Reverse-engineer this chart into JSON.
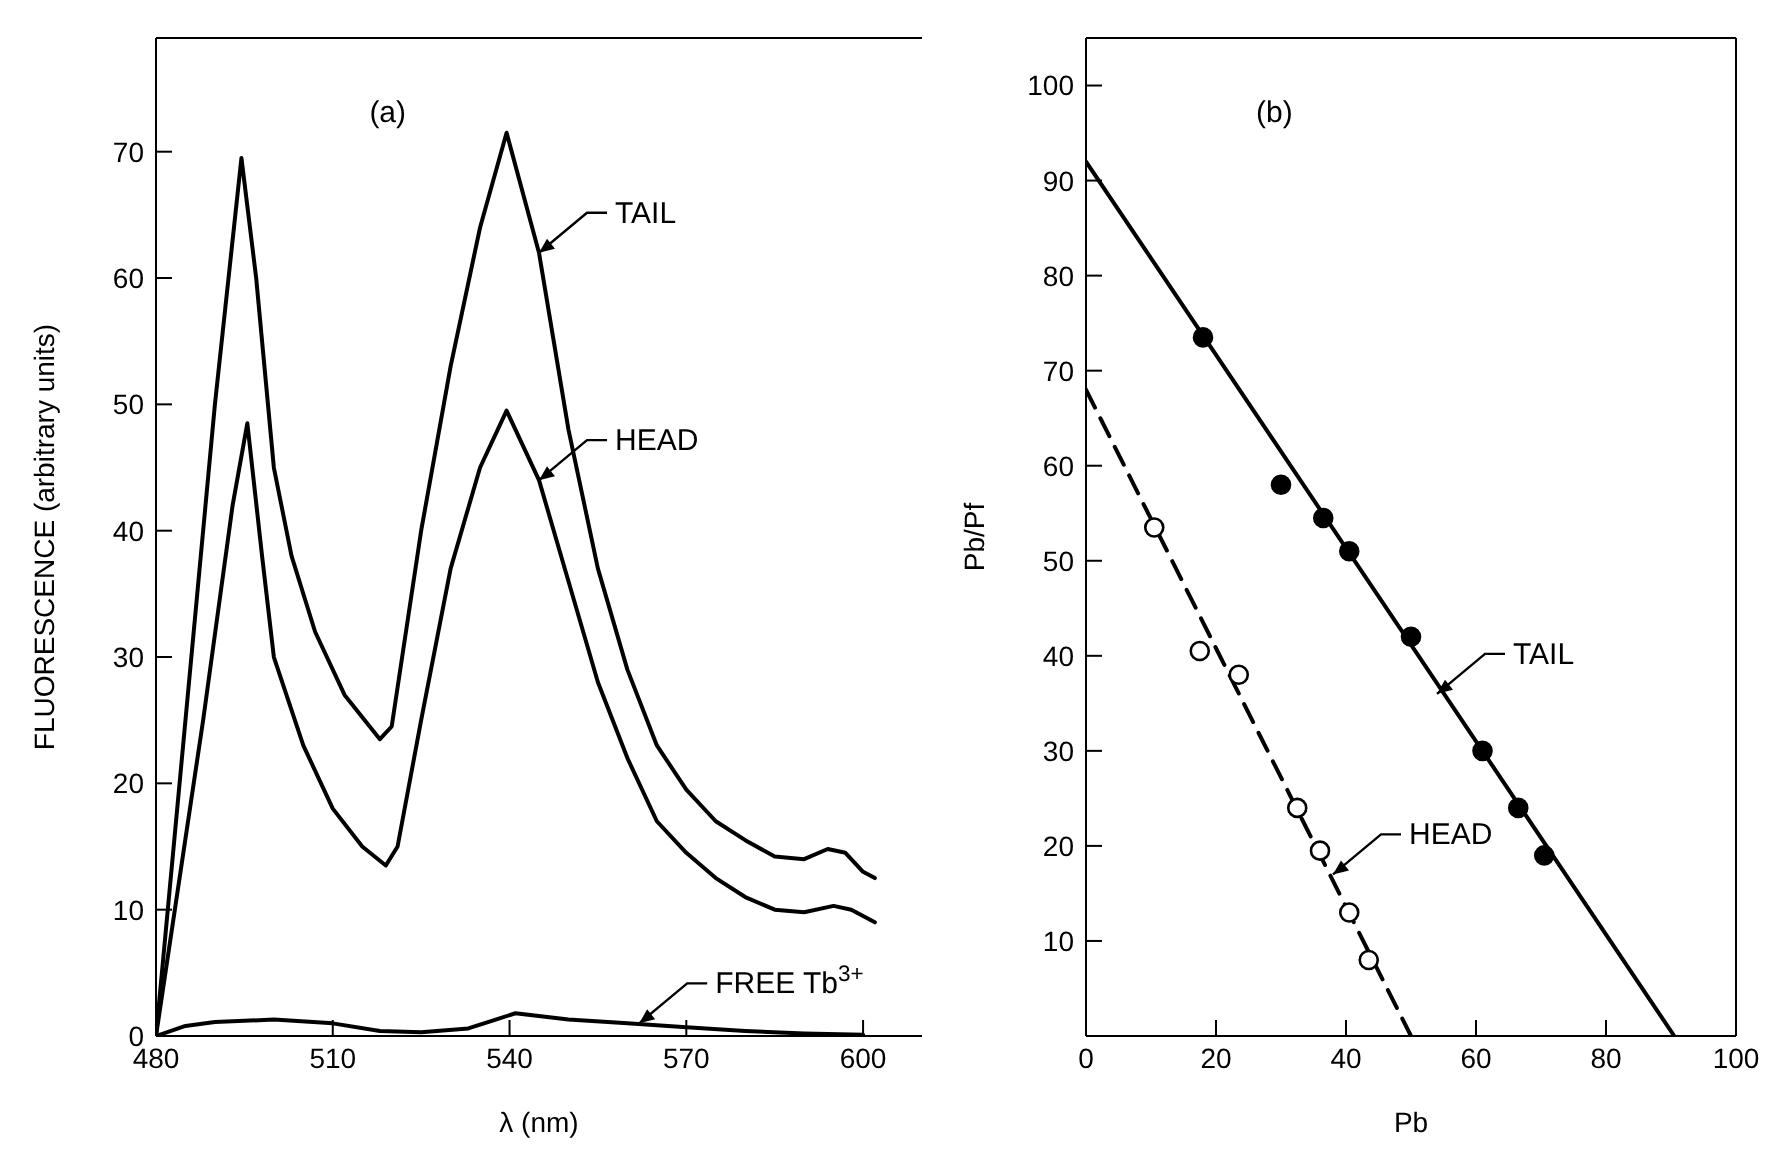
{
  "chart_data": [
    {
      "type": "line",
      "title": "(a)",
      "xlabel": "λ (nm)",
      "ylabel": "FLUORESCENCE (arbitrary units)",
      "xlim": [
        480,
        610
      ],
      "xticks": [
        480,
        510,
        540,
        570,
        600
      ],
      "ylim": [
        0,
        79
      ],
      "yticks": [
        0,
        10,
        20,
        30,
        40,
        50,
        60,
        70
      ],
      "marker": "none",
      "line_style": "solid",
      "series": [
        {
          "color": "#000000",
          "x": [
            480,
            487,
            490,
            494.5,
            497,
            500,
            503,
            507,
            512,
            518,
            520,
            525,
            530,
            535,
            539.5,
            545,
            550,
            555,
            560,
            565,
            570,
            575,
            580,
            585,
            590,
            594,
            597,
            600,
            602
          ],
          "values": [
            0,
            35,
            50,
            69.5,
            60,
            45,
            38,
            32,
            27,
            23.5,
            24.5,
            40,
            53,
            64,
            71.5,
            62,
            48,
            37,
            29,
            23,
            19.5,
            17,
            15.5,
            14.2,
            14,
            14.8,
            14.5,
            13,
            12.5
          ]
        },
        {
          "color": "#000000",
          "x": [
            480,
            488,
            493,
            495.5,
            498,
            500,
            505,
            510,
            515,
            519,
            521,
            525,
            530,
            535,
            539.5,
            545,
            550,
            555,
            560,
            565,
            570,
            575,
            580,
            585,
            590,
            595,
            598,
            602
          ],
          "values": [
            0,
            25,
            42,
            48.5,
            38,
            30,
            23,
            18,
            15,
            13.5,
            15,
            25,
            37,
            45,
            49.5,
            44,
            36,
            28,
            22,
            17,
            14.5,
            12.5,
            11,
            10,
            9.8,
            10.3,
            10,
            9
          ]
        },
        {
          "color": "#000000",
          "x": [
            480,
            485,
            490,
            500,
            510,
            518,
            525,
            533,
            537,
            541,
            550,
            560,
            570,
            580,
            590,
            600
          ],
          "values": [
            0,
            0.8,
            1.1,
            1.3,
            1,
            0.4,
            0.3,
            0.6,
            1.2,
            1.8,
            1.3,
            1,
            0.7,
            0.4,
            0.2,
            0.1
          ]
        }
      ],
      "annotations": [
        {
          "text": "TAIL",
          "x": 545,
          "y": 62
        },
        {
          "text": "HEAD",
          "x": 545,
          "y": 44
        },
        {
          "text": "FREE Tb$^{3+}$",
          "x": 562,
          "y": 1
        }
      ]
    },
    {
      "type": "scatter",
      "title": "(b)",
      "xlabel": "Pb",
      "ylabel": "Pb/Pf",
      "xlim": [
        0,
        100
      ],
      "xticks": [
        0,
        20,
        40,
        60,
        80,
        100
      ],
      "ylim": [
        0,
        105
      ],
      "yticks": [
        10,
        20,
        30,
        40,
        50,
        60,
        70,
        80,
        90,
        100
      ],
      "marker": "circle",
      "series": [
        {
          "color": "#000000",
          "x": [
            18,
            30,
            36.5,
            40.5,
            50,
            61,
            66.5,
            70.5
          ],
          "values": [
            73.5,
            58,
            54.5,
            51,
            42,
            30,
            24,
            19
          ]
        },
        {
          "color": "#ffffff",
          "x": [
            10.5,
            17.5,
            23.5,
            32.5,
            36,
            40.5,
            43.5
          ],
          "values": [
            53.5,
            40.5,
            38,
            24,
            19.5,
            13,
            8
          ]
        },
        {
          "type": "line",
          "color": "#000000",
          "line_style": "solid",
          "marker": "none",
          "x": [
            0,
            90.5
          ],
          "values": [
            92,
            0
          ]
        },
        {
          "type": "line",
          "color": "#000000",
          "line_style": "dashed",
          "marker": "none",
          "x": [
            0,
            50
          ],
          "values": [
            68,
            0
          ]
        }
      ],
      "annotations": [
        {
          "text": "TAIL",
          "x": 54,
          "y": 36
        },
        {
          "text": "HEAD",
          "x": 38,
          "y": 17
        }
      ]
    }
  ]
}
